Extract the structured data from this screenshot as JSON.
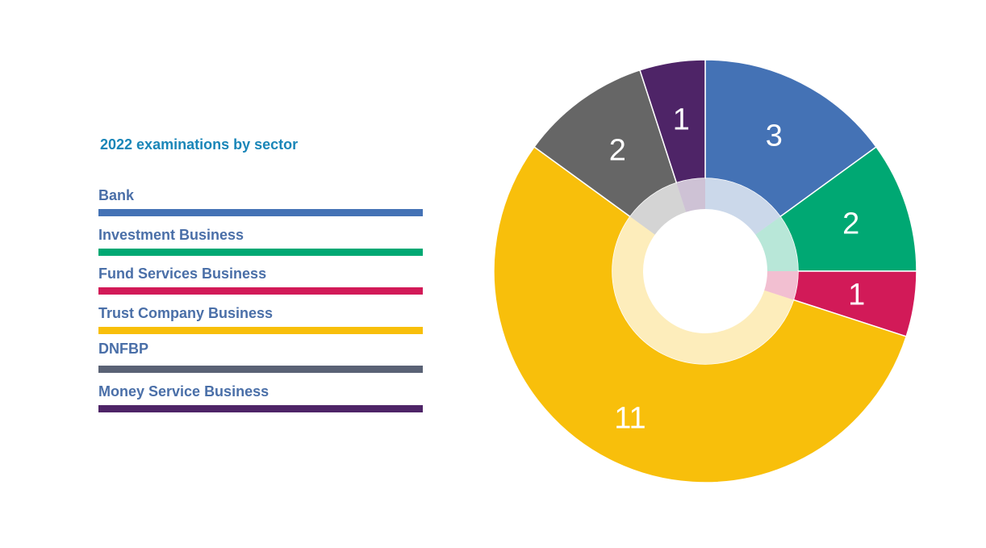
{
  "chart_data": {
    "type": "pie",
    "title": "2022 examinations by sector",
    "categories": [
      "Bank",
      "Investment Business",
      "Fund Services Business",
      "Trust Company Business",
      "DNFBP",
      "Money Service Business"
    ],
    "values": [
      3,
      2,
      1,
      11,
      2,
      1
    ],
    "slice_labels": [
      "3",
      "2",
      "1",
      "11",
      "2",
      "1"
    ],
    "colors": [
      "#4472b5",
      "#00a873",
      "#d21a58",
      "#f8bf0b",
      "#666666",
      "#4e2467"
    ],
    "legend_colors": [
      "#4472b5",
      "#00a873",
      "#d21a58",
      "#f8bf0b",
      "#5a6275",
      "#4e2467"
    ],
    "legend_position": "left",
    "donut": true
  }
}
